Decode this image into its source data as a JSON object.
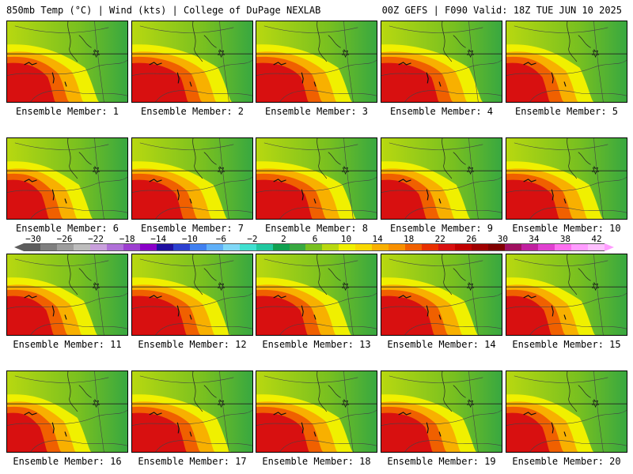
{
  "header": {
    "left": "850mb Temp (°C) | Wind (kts) | College of DuPage NEXLAB",
    "right": "00Z GEFS | F090 Valid: 18Z TUE JUN 10 2025"
  },
  "members": [
    {
      "label": "Ensemble Member: 1"
    },
    {
      "label": "Ensemble Member: 2"
    },
    {
      "label": "Ensemble Member: 3"
    },
    {
      "label": "Ensemble Member: 4"
    },
    {
      "label": "Ensemble Member: 5"
    },
    {
      "label": "Ensemble Member: 6"
    },
    {
      "label": "Ensemble Member: 7"
    },
    {
      "label": "Ensemble Member: 8"
    },
    {
      "label": "Ensemble Member: 9"
    },
    {
      "label": "Ensemble Member: 10"
    },
    {
      "label": "Ensemble Member: 11"
    },
    {
      "label": "Ensemble Member: 12"
    },
    {
      "label": "Ensemble Member: 13"
    },
    {
      "label": "Ensemble Member: 14"
    },
    {
      "label": "Ensemble Member: 15"
    },
    {
      "label": "Ensemble Member: 16"
    },
    {
      "label": "Ensemble Member: 17"
    },
    {
      "label": "Ensemble Member: 18"
    },
    {
      "label": "Ensemble Member: 19"
    },
    {
      "label": "Ensemble Member: 20"
    }
  ],
  "colorbar": {
    "labels": [
      "−30",
      "−26",
      "−22",
      "−18",
      "−14",
      "−10",
      "−6",
      "−2",
      "2",
      "6",
      "10",
      "14",
      "18",
      "22",
      "26",
      "30",
      "34",
      "38",
      "42"
    ],
    "colors": [
      "#5d5d5d",
      "#7f7f7f",
      "#9e9e9e",
      "#bdbdbd",
      "#c9a0dc",
      "#b070d8",
      "#9d3fd0",
      "#8a00c8",
      "#2010a0",
      "#2c40d0",
      "#4080f0",
      "#60b0f8",
      "#80d8f8",
      "#40e0d0",
      "#20c8a0",
      "#10a050",
      "#38a840",
      "#78c020",
      "#b8d810",
      "#f0f000",
      "#f8d800",
      "#f8b000",
      "#f89000",
      "#f06000",
      "#e83000",
      "#d81010",
      "#c00000",
      "#a00000",
      "#800000",
      "#a01060",
      "#c020a0",
      "#e040d0",
      "#ff70f0",
      "#ff9cff",
      "#ffc0ff"
    ]
  },
  "field_colors": {
    "hot": "#d81010",
    "warm": "#f06000",
    "mild": "#f8b000",
    "yellow": "#f0f000",
    "lime": "#b8d810",
    "green": "#78c020",
    "dark_green": "#38a840"
  }
}
